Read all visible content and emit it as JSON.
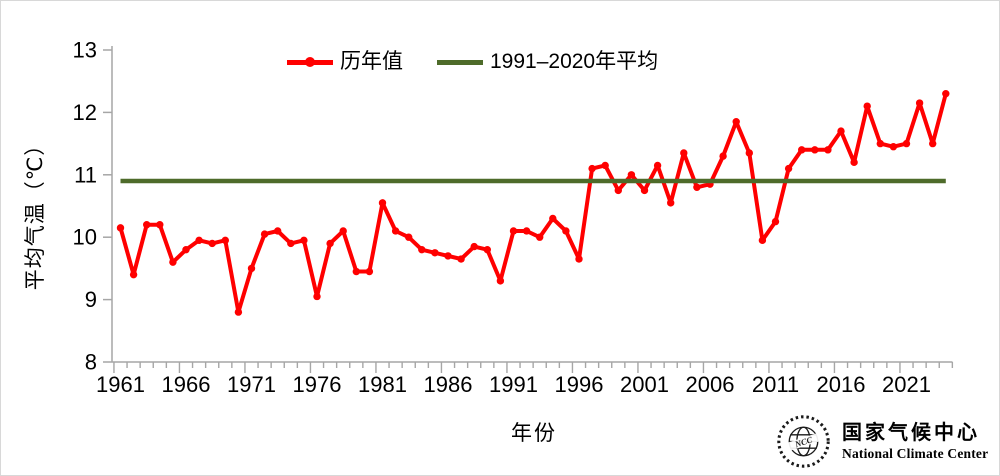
{
  "colors": {
    "series": "#ff0000",
    "average": "#4e6b2a",
    "axis": "#a6a6a6",
    "text": "#000000",
    "logo": "#1a1a1a"
  },
  "legend": {
    "series_label": "历年值",
    "average_label": "1991–2020年平均"
  },
  "axes": {
    "y_title": "平均气温（℃）",
    "x_title": "年份",
    "y_ticks": [
      8,
      9,
      10,
      11,
      12,
      13
    ],
    "x_tick_labels": [
      1961,
      1966,
      1971,
      1976,
      1981,
      1986,
      1991,
      1996,
      2001,
      2006,
      2011,
      2016,
      2021
    ]
  },
  "logo": {
    "name_cn": "国家气候中心",
    "name_en": "National Climate Center"
  },
  "chart_data": {
    "type": "line",
    "title": "",
    "xlabel": "年份",
    "ylabel": "平均气温（℃）",
    "ylim": [
      8,
      13
    ],
    "y_tick_step": 1,
    "x_tick_interval": 5,
    "grid": false,
    "legend_position": "top",
    "x": [
      1961,
      1962,
      1963,
      1964,
      1965,
      1966,
      1967,
      1968,
      1969,
      1970,
      1971,
      1972,
      1973,
      1974,
      1975,
      1976,
      1977,
      1978,
      1979,
      1980,
      1981,
      1982,
      1983,
      1984,
      1985,
      1986,
      1987,
      1988,
      1989,
      1990,
      1991,
      1992,
      1993,
      1994,
      1995,
      1996,
      1997,
      1998,
      1999,
      2000,
      2001,
      2002,
      2003,
      2004,
      2005,
      2006,
      2007,
      2008,
      2009,
      2010,
      2011,
      2012,
      2013,
      2014,
      2015,
      2016,
      2017,
      2018,
      2019,
      2020,
      2021,
      2022,
      2023,
      2024
    ],
    "series": [
      {
        "name": "历年值",
        "type": "line-with-markers",
        "color": "#ff0000",
        "values": [
          10.15,
          9.4,
          10.2,
          10.2,
          9.6,
          9.8,
          9.95,
          9.9,
          9.95,
          8.8,
          9.5,
          10.05,
          10.1,
          9.9,
          9.95,
          9.05,
          9.9,
          10.1,
          9.45,
          9.45,
          10.55,
          10.1,
          10.0,
          9.8,
          9.75,
          9.7,
          9.65,
          9.85,
          9.8,
          9.3,
          10.1,
          10.1,
          10.0,
          10.3,
          10.1,
          9.65,
          11.1,
          11.15,
          10.75,
          11.0,
          10.75,
          11.15,
          10.55,
          11.35,
          10.8,
          10.85,
          11.3,
          11.85,
          11.35,
          9.95,
          10.25,
          11.1,
          11.4,
          11.4,
          11.4,
          11.7,
          11.2,
          12.1,
          11.5,
          11.45,
          11.5,
          12.15,
          11.5,
          12.3
        ]
      },
      {
        "name": "1991–2020年平均",
        "type": "horizontal-reference-line",
        "color": "#4e6b2a",
        "value": 10.9
      }
    ]
  }
}
